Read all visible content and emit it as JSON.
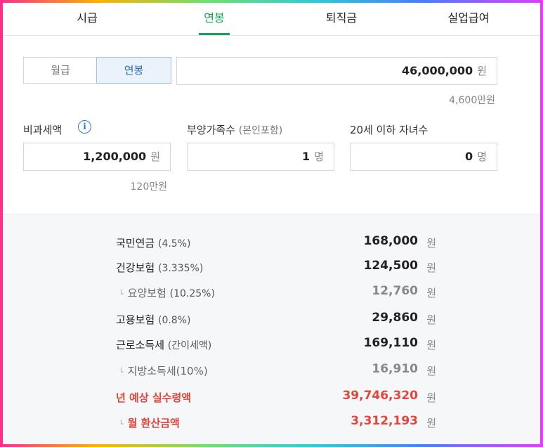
{
  "tabs": [
    "시급",
    "연봉",
    "퇴직금",
    "실업급여"
  ],
  "active_tab": "연봉",
  "mode": {
    "monthly": "월급",
    "yearly": "연봉"
  },
  "salary": {
    "value": "46,000,000",
    "unit": "원",
    "hint": "4,600만원"
  },
  "nontax": {
    "label": "비과세액",
    "info": "i",
    "value": "1,200,000",
    "unit": "원",
    "hint": "120만원"
  },
  "dependents": {
    "label": "부양가족수",
    "label_sub": "(본인포함)",
    "value": "1",
    "unit": "명"
  },
  "children": {
    "label": "20세 이하 자녀수",
    "value": "0",
    "unit": "명"
  },
  "results": {
    "pension": {
      "name": "국민연금",
      "rate": "(4.5%)",
      "amount": "168,000",
      "unit": "원"
    },
    "health": {
      "name": "건강보험",
      "rate": "(3.335%)",
      "amount": "124,500",
      "unit": "원"
    },
    "care": {
      "name": "요양보험",
      "rate": "(10.25%)",
      "amount": "12,760",
      "unit": "원"
    },
    "employment": {
      "name": "고용보험",
      "rate": "(0.8%)",
      "amount": "29,860",
      "unit": "원"
    },
    "income_tax": {
      "name": "근로소득세",
      "rate": "(간이세액)",
      "amount": "169,110",
      "unit": "원"
    },
    "local_tax": {
      "name": "지방소득세(10%)",
      "amount": "16,910",
      "unit": "원"
    },
    "annual_net": {
      "name": "년 예상 실수령액",
      "amount": "39,746,320",
      "unit": "원"
    },
    "monthly_net": {
      "name": "월 환산금액",
      "amount": "3,312,193",
      "unit": "원"
    }
  },
  "colors": {
    "active_tab": "#18a058",
    "highlight": "#e5463c",
    "info": "#2a7ad0"
  }
}
